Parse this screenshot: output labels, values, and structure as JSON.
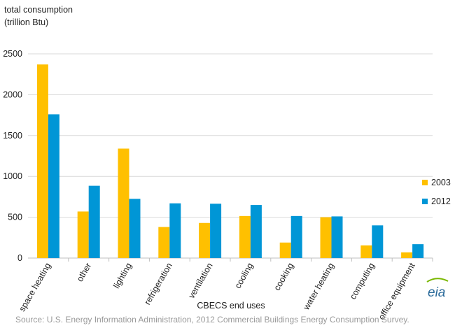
{
  "chart_data": {
    "type": "bar",
    "ylabel_line1": "total consumption",
    "ylabel_line2": "(trillion Btu)",
    "xlabel": "CBECS end uses",
    "categories": [
      "space heating",
      "other",
      "lighting",
      "refrigeration",
      "ventilation",
      "cooling",
      "cooking",
      "water heating",
      "computing",
      "office equipment"
    ],
    "series": [
      {
        "name": "2003",
        "color": "#ffc000",
        "values": [
          2370,
          570,
          1340,
          380,
          430,
          515,
          190,
          500,
          155,
          70
        ]
      },
      {
        "name": "2012",
        "color": "#0096d6",
        "values": [
          1760,
          885,
          725,
          670,
          665,
          650,
          515,
          510,
          400,
          170
        ]
      }
    ],
    "ylim": [
      0,
      2500
    ],
    "yticks": [
      0,
      500,
      1000,
      1500,
      2000,
      2500
    ],
    "grid": true,
    "legend_position": "right"
  },
  "source_text": "Source: U.S. Energy Information Administration, 2012 Commercial Buildings Energy Consumption Survey.",
  "logo": {
    "text": "eia",
    "icon": "eia-logo-icon"
  }
}
